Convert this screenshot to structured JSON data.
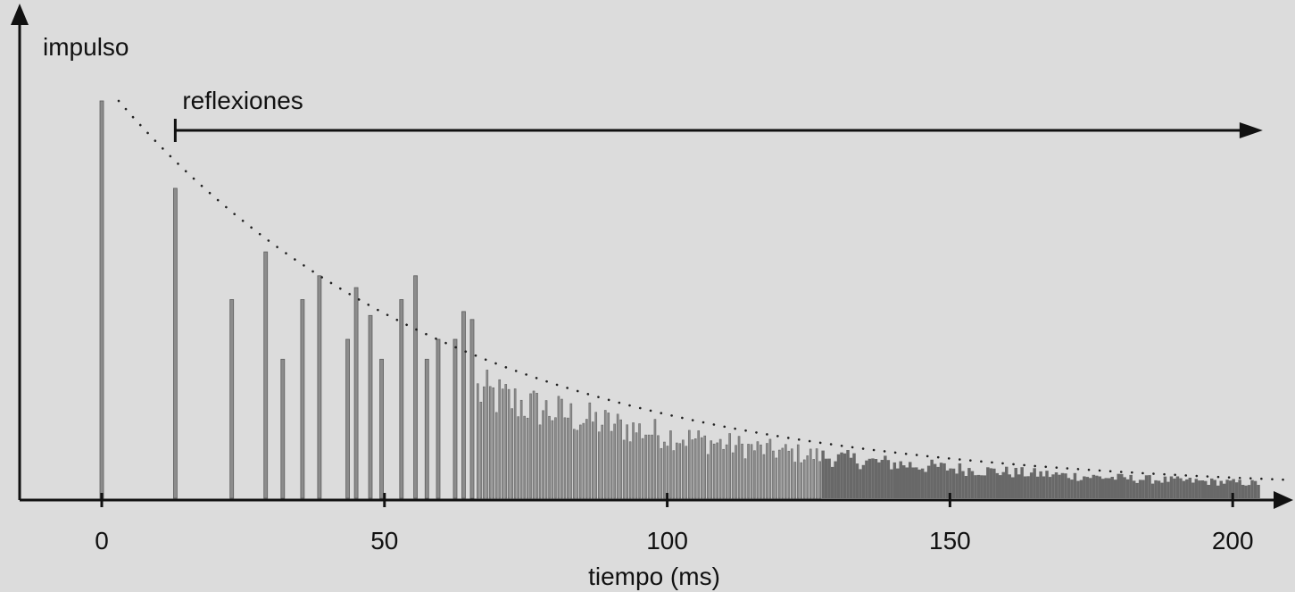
{
  "chart_data": {
    "type": "bar",
    "title": "",
    "ylabel": "impulso",
    "xlabel": "tiempo (ms)",
    "annotation": "reflexiones",
    "xlim": [
      -15,
      210
    ],
    "ylim": [
      0,
      1
    ],
    "xticks": [
      "0",
      "50",
      "100",
      "150",
      "200"
    ],
    "grid": false,
    "reflections_start_ms": 13,
    "reflections_end_ms": 205,
    "envelope": {
      "style": "dotted",
      "x_start": 3,
      "x_end": 210,
      "y_start": 1.0,
      "decay_ms": 60,
      "floor": 0.015
    },
    "discrete_reflections": [
      {
        "x": 0,
        "y": 1.0
      },
      {
        "x": 13,
        "y": 0.78
      },
      {
        "x": 23,
        "y": 0.5
      },
      {
        "x": 29,
        "y": 0.62
      },
      {
        "x": 32,
        "y": 0.35
      },
      {
        "x": 35.5,
        "y": 0.5
      },
      {
        "x": 38.5,
        "y": 0.56
      },
      {
        "x": 43.5,
        "y": 0.4
      },
      {
        "x": 45,
        "y": 0.53
      },
      {
        "x": 47.5,
        "y": 0.46
      },
      {
        "x": 49.5,
        "y": 0.35
      },
      {
        "x": 53,
        "y": 0.5
      },
      {
        "x": 55.5,
        "y": 0.56
      },
      {
        "x": 57.5,
        "y": 0.35
      },
      {
        "x": 59.5,
        "y": 0.4
      },
      {
        "x": 62.5,
        "y": 0.4
      },
      {
        "x": 64,
        "y": 0.47
      },
      {
        "x": 65.5,
        "y": 0.45
      }
    ],
    "dense_tail": {
      "x_start": 66.5,
      "x_end": 205,
      "step": 0.55,
      "decay_ms": 60,
      "y_scale": 0.96,
      "floor": 0.015,
      "min_fraction": 0.62,
      "fill_start": 127,
      "fill_color": "#686868"
    },
    "bar_color": "#8c8c8c",
    "bar_edge_color": "#5e5e5e",
    "axis_color": "#111111",
    "envelope_color": "#222222"
  }
}
